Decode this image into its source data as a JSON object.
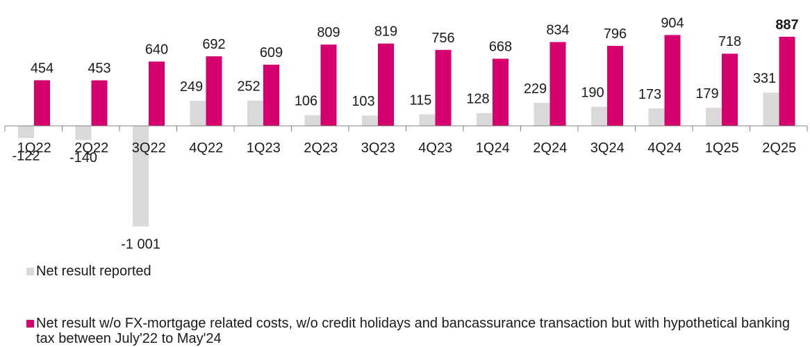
{
  "chart_data": {
    "type": "bar",
    "categories": [
      "1Q22",
      "2Q22",
      "3Q22",
      "4Q22",
      "1Q23",
      "2Q23",
      "3Q23",
      "4Q23",
      "1Q24",
      "2Q24",
      "3Q24",
      "4Q24",
      "1Q25",
      "2Q25"
    ],
    "series": [
      {
        "name": "Net result reported",
        "color": "#d9d9d9",
        "values": [
          -122,
          -140,
          -1001,
          249,
          252,
          106,
          103,
          115,
          128,
          229,
          190,
          173,
          179,
          331
        ],
        "labels": [
          "-122",
          "-140",
          "-1 001",
          "249",
          "252",
          "106",
          "103",
          "115",
          "128",
          "229",
          "190",
          "173",
          "179",
          "331"
        ]
      },
      {
        "name": "Net result w/o FX-mortgage related costs, w/o credit holidays and bancassurance transaction but with hypothetical banking tax between July'22 to May'24",
        "color": "#d6006e",
        "values": [
          454,
          453,
          640,
          692,
          609,
          809,
          819,
          756,
          668,
          834,
          796,
          904,
          718,
          887
        ],
        "labels": [
          "454",
          "453",
          "640",
          "692",
          "609",
          "809",
          "819",
          "756",
          "668",
          "834",
          "796",
          "904",
          "718",
          "887"
        ]
      }
    ],
    "highlight": {
      "series": 1,
      "category": "2Q25",
      "color": "#d6006e"
    },
    "title": "",
    "xlabel": "",
    "ylabel": "",
    "legend_position": "bottom-left",
    "grid": false
  },
  "legend": {
    "items": [
      {
        "label": "Net result reported",
        "color": "#d9d9d9"
      },
      {
        "label": "Net result w/o FX-mortgage related costs, w/o credit holidays and bancassurance transaction but with hypothetical banking tax between July'22 to May'24",
        "color": "#d6006e"
      }
    ]
  }
}
